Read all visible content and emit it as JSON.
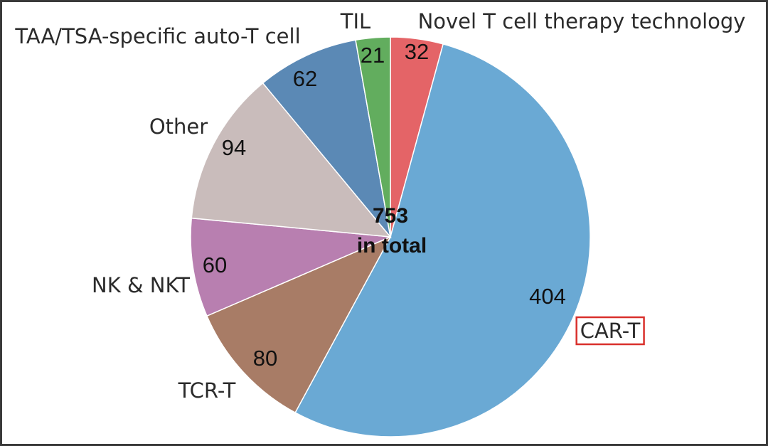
{
  "chart_data": {
    "type": "pie",
    "total": {
      "value": "753",
      "label": "in total"
    },
    "slices": [
      {
        "label": "Novel T cell therapy technology",
        "value": 32,
        "color": "#e46467"
      },
      {
        "label": "CAR-T",
        "value": 404,
        "color": "#6aa9d4",
        "highlighted": true,
        "highlight_color": "#d9302c"
      },
      {
        "label": "TCR-T",
        "value": 80,
        "color": "#a87c66"
      },
      {
        "label": "NK & NKT",
        "value": 60,
        "color": "#b87fb0"
      },
      {
        "label": "Other",
        "value": 94,
        "color": "#c9bcbb"
      },
      {
        "label": "TAA/TSA-specific auto-T cell",
        "value": 62,
        "color": "#5b89b5"
      },
      {
        "label": "TIL",
        "value": 21,
        "color": "#62ad5e"
      }
    ],
    "start": "top, clockwise",
    "legend": "none"
  }
}
